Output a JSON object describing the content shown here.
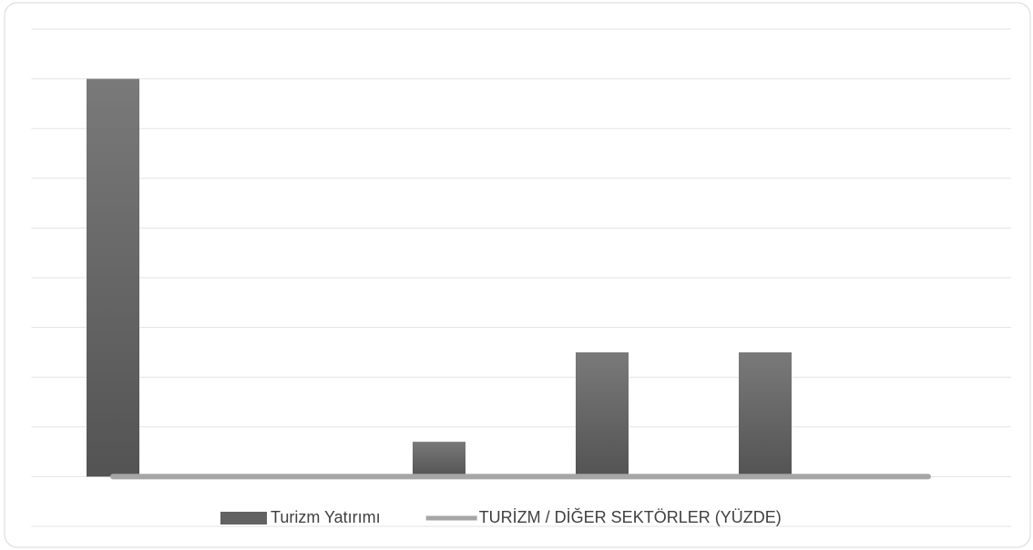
{
  "chart_data": {
    "type": "bar",
    "categories": [
      null,
      null,
      null,
      null,
      null,
      null
    ],
    "series": [
      {
        "name": "Turizm Yatırımı",
        "color": "#626262",
        "values": [
          8,
          0,
          0.7,
          2.5,
          2.5,
          0
        ]
      },
      {
        "name": "TURİZM / DİĞER SEKTÖRLER (YÜZDE)",
        "type": "line",
        "color": "#a6a6a6",
        "values": [
          0,
          0,
          0,
          0,
          0,
          0
        ]
      }
    ],
    "ylim": [
      -1,
      9
    ],
    "yticks": [
      -1,
      0,
      1,
      2,
      3,
      4,
      5,
      6,
      7,
      8,
      9
    ],
    "grid": true,
    "legend": "bottom"
  }
}
